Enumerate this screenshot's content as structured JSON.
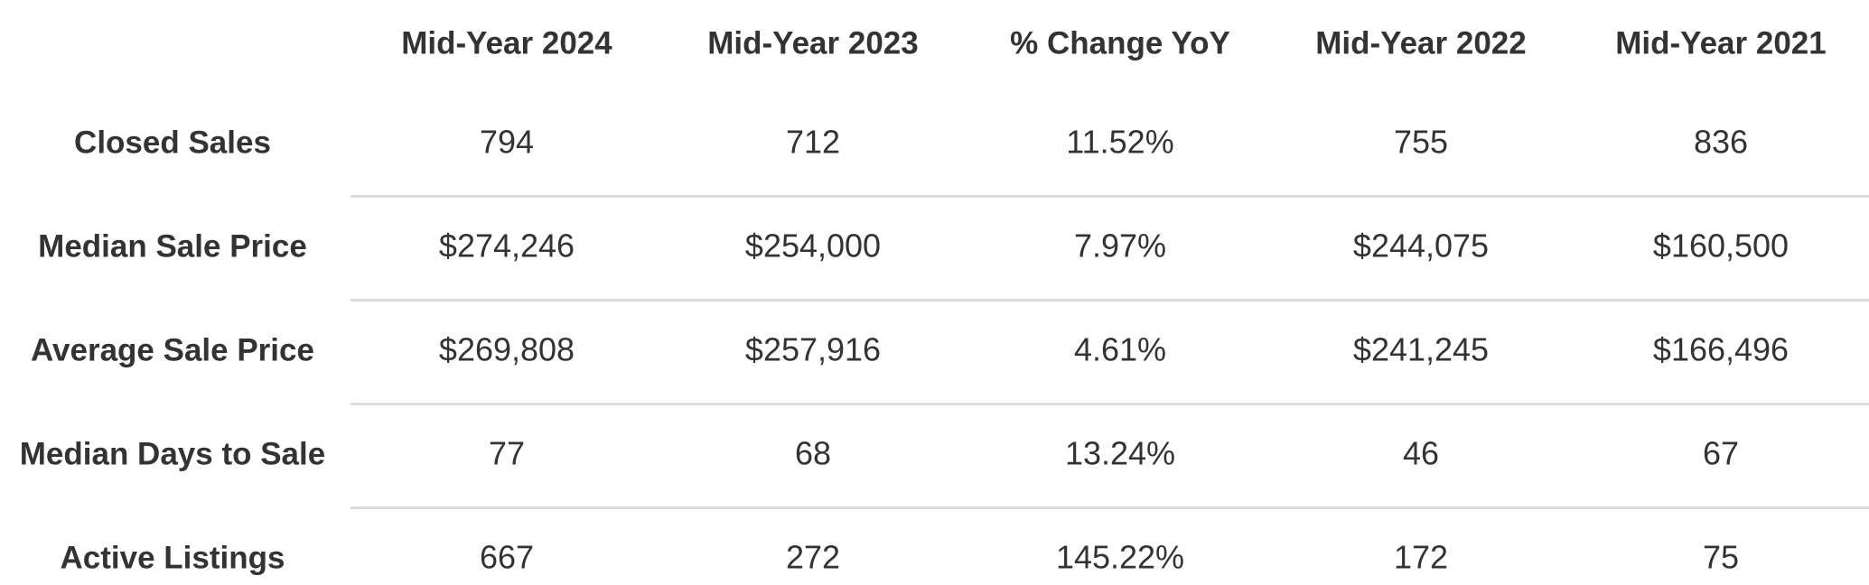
{
  "table": {
    "columns": [
      "Mid-Year 2024",
      "Mid-Year 2023",
      "% Change YoY",
      "Mid-Year 2022",
      "Mid-Year 2021"
    ],
    "rows": [
      {
        "label": "Closed Sales",
        "cells": [
          "794",
          "712",
          "11.52%",
          "755",
          "836"
        ]
      },
      {
        "label": "Median Sale Price",
        "cells": [
          "$274,246",
          "$254,000",
          "7.97%",
          "$244,075",
          "$160,500"
        ]
      },
      {
        "label": "Average Sale Price",
        "cells": [
          "$269,808",
          "$257,916",
          "4.61%",
          "$241,245",
          "$166,496"
        ]
      },
      {
        "label": "Median Days to Sale",
        "cells": [
          "77",
          "68",
          "13.24%",
          "46",
          "67"
        ]
      },
      {
        "label": "Active Listings",
        "cells": [
          "667",
          "272",
          "145.22%",
          "172",
          "75"
        ]
      }
    ]
  }
}
